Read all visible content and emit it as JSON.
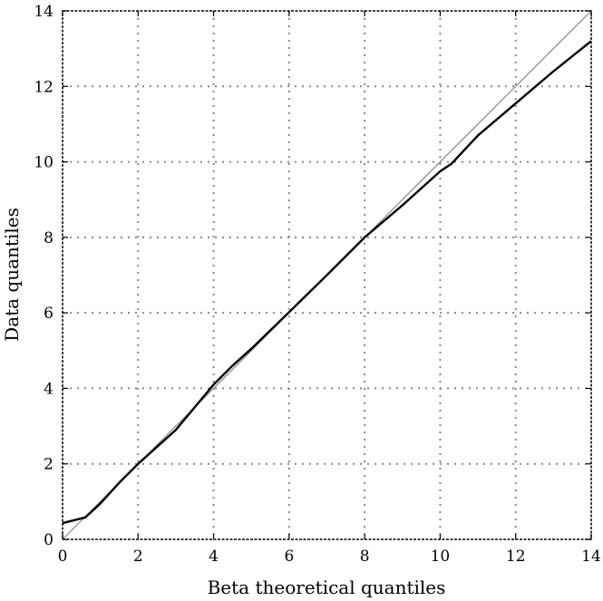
{
  "chart_data": {
    "type": "line",
    "title": "",
    "xlabel": "Beta theoretical quantiles",
    "ylabel": "Data quantiles",
    "xlim": [
      0,
      14
    ],
    "ylim": [
      0,
      14
    ],
    "grid": true,
    "xticks": [
      "0",
      "2",
      "4",
      "6",
      "8",
      "10",
      "12",
      "14"
    ],
    "yticks": [
      "0",
      "2",
      "4",
      "6",
      "8",
      "10",
      "12",
      "14"
    ],
    "xtick_values": [
      0,
      2,
      4,
      6,
      8,
      10,
      12,
      14
    ],
    "ytick_values": [
      0,
      2,
      4,
      6,
      8,
      10,
      12,
      14
    ],
    "series": [
      {
        "role": "data",
        "color": "#000000",
        "x": [
          0,
          0.6,
          1.0,
          1.5,
          2.0,
          2.5,
          3.0,
          3.5,
          4.0,
          4.5,
          5.0,
          6.0,
          7.0,
          8.0,
          9.0,
          10.0,
          10.3,
          11.0,
          12.0,
          13.0,
          14.0
        ],
        "y": [
          0.43,
          0.58,
          0.95,
          1.5,
          2.0,
          2.45,
          2.9,
          3.5,
          4.1,
          4.6,
          5.05,
          6.02,
          7.0,
          8.0,
          8.85,
          9.75,
          9.95,
          10.7,
          11.55,
          12.4,
          13.2
        ]
      },
      {
        "role": "reference",
        "color": "#888888",
        "x": [
          0,
          14
        ],
        "y": [
          0,
          14
        ]
      }
    ]
  }
}
